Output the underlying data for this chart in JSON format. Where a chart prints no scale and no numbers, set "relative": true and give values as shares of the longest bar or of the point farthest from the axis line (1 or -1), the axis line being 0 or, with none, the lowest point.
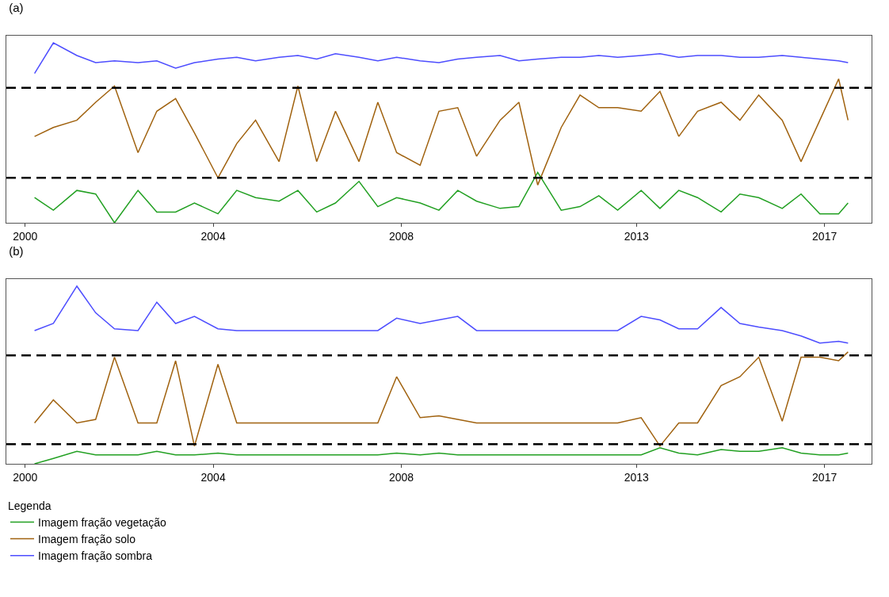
{
  "chart_data": [
    {
      "type": "line",
      "title": "(a)",
      "relative": true,
      "grid": false,
      "legend": false,
      "xlim": [
        1999.6,
        2018.0
      ],
      "xticks": [
        2000,
        2004,
        2008,
        2013,
        2017
      ],
      "x": [
        2000.2,
        2000.6,
        2001.1,
        2001.5,
        2001.9,
        2002.4,
        2002.8,
        2003.2,
        2003.6,
        2004.1,
        2004.5,
        2004.9,
        2005.4,
        2005.8,
        2006.2,
        2006.6,
        2007.1,
        2007.5,
        2007.9,
        2008.4,
        2008.8,
        2009.2,
        2009.6,
        2010.1,
        2010.5,
        2010.9,
        2011.4,
        2011.8,
        2012.2,
        2012.6,
        2013.1,
        2013.5,
        2013.9,
        2014.3,
        2014.8,
        2015.2,
        2015.6,
        2016.1,
        2016.5,
        2016.9,
        2017.3,
        2017.5
      ],
      "series": [
        {
          "color": "#4d4dff",
          "values": [
            0.83,
            1.0,
            0.93,
            0.89,
            0.9,
            0.89,
            0.9,
            0.86,
            0.89,
            0.91,
            0.92,
            0.9,
            0.92,
            0.93,
            0.91,
            0.94,
            0.92,
            0.9,
            0.92,
            0.9,
            0.89,
            0.91,
            0.92,
            0.93,
            0.9,
            0.91,
            0.92,
            0.92,
            0.93,
            0.92,
            0.93,
            0.94,
            0.92,
            0.93,
            0.93,
            0.92,
            0.92,
            0.93,
            0.92,
            0.91,
            0.9,
            0.89
          ]
        },
        {
          "color": "#a0620f",
          "values": [
            0.48,
            0.53,
            0.57,
            0.67,
            0.76,
            0.39,
            0.62,
            0.69,
            0.5,
            0.25,
            0.44,
            0.57,
            0.34,
            0.76,
            0.34,
            0.62,
            0.34,
            0.67,
            0.39,
            0.32,
            0.62,
            0.64,
            0.37,
            0.57,
            0.67,
            0.21,
            0.53,
            0.71,
            0.64,
            0.64,
            0.62,
            0.73,
            0.48,
            0.62,
            0.67,
            0.57,
            0.71,
            0.57,
            0.34,
            0.57,
            0.8,
            0.57
          ]
        },
        {
          "color": "#22a022",
          "values": [
            0.14,
            0.07,
            0.18,
            0.16,
            0.0,
            0.18,
            0.06,
            0.06,
            0.11,
            0.05,
            0.18,
            0.14,
            0.12,
            0.18,
            0.06,
            0.11,
            0.23,
            0.09,
            0.14,
            0.11,
            0.07,
            0.18,
            0.12,
            0.08,
            0.09,
            0.28,
            0.07,
            0.09,
            0.15,
            0.07,
            0.18,
            0.08,
            0.18,
            0.14,
            0.06,
            0.16,
            0.14,
            0.08,
            0.16,
            0.05,
            0.05,
            0.11
          ]
        }
      ],
      "ref_lines": [
        {
          "axis": "y",
          "value": 0.75,
          "color": "#000000",
          "line_style": "dashed"
        },
        {
          "axis": "y",
          "value": 0.25,
          "color": "#000000",
          "line_style": "dashed"
        }
      ]
    },
    {
      "type": "line",
      "title": "(b)",
      "relative": true,
      "grid": false,
      "legend": "bottom left",
      "legend_title": "Legenda",
      "xlim": [
        1999.6,
        2018.0
      ],
      "xticks": [
        2000,
        2004,
        2008,
        2013,
        2017
      ],
      "x": [
        2000.2,
        2000.6,
        2001.1,
        2001.5,
        2001.9,
        2002.4,
        2002.8,
        2003.2,
        2003.6,
        2004.1,
        2004.5,
        2004.9,
        2005.4,
        2005.8,
        2006.2,
        2006.6,
        2007.1,
        2007.5,
        2007.9,
        2008.4,
        2008.8,
        2009.2,
        2009.6,
        2010.1,
        2010.5,
        2010.9,
        2011.4,
        2011.8,
        2012.2,
        2012.6,
        2013.1,
        2013.5,
        2013.9,
        2014.3,
        2014.8,
        2015.2,
        2015.6,
        2016.1,
        2016.5,
        2016.9,
        2017.3,
        2017.5
      ],
      "series": [
        {
          "name": "Imagem fração vegetação",
          "color": "#22a022",
          "values": [
            0.0,
            0.03,
            0.07,
            0.05,
            0.05,
            0.05,
            0.07,
            0.05,
            0.05,
            0.06,
            0.05,
            0.05,
            0.05,
            0.05,
            0.05,
            0.05,
            0.05,
            0.05,
            0.06,
            0.05,
            0.06,
            0.05,
            0.05,
            0.05,
            0.05,
            0.05,
            0.05,
            0.05,
            0.05,
            0.05,
            0.05,
            0.09,
            0.06,
            0.05,
            0.08,
            0.07,
            0.07,
            0.09,
            0.06,
            0.05,
            0.05,
            0.06
          ]
        },
        {
          "name": "Imagem fração solo",
          "color": "#a0620f",
          "values": [
            0.23,
            0.36,
            0.23,
            0.25,
            0.6,
            0.23,
            0.23,
            0.58,
            0.1,
            0.56,
            0.23,
            0.23,
            0.23,
            0.23,
            0.23,
            0.23,
            0.23,
            0.23,
            0.49,
            0.26,
            0.27,
            0.25,
            0.23,
            0.23,
            0.23,
            0.23,
            0.23,
            0.23,
            0.23,
            0.23,
            0.26,
            0.1,
            0.23,
            0.23,
            0.44,
            0.49,
            0.6,
            0.24,
            0.6,
            0.6,
            0.58,
            0.63
          ]
        },
        {
          "name": "Imagem fração sombra",
          "color": "#4d4dff",
          "values": [
            0.75,
            0.79,
            1.0,
            0.85,
            0.76,
            0.75,
            0.91,
            0.79,
            0.83,
            0.76,
            0.75,
            0.75,
            0.75,
            0.75,
            0.75,
            0.75,
            0.75,
            0.75,
            0.82,
            0.79,
            0.81,
            0.83,
            0.75,
            0.75,
            0.75,
            0.75,
            0.75,
            0.75,
            0.75,
            0.75,
            0.83,
            0.81,
            0.76,
            0.76,
            0.88,
            0.79,
            0.77,
            0.75,
            0.72,
            0.68,
            0.69,
            0.68
          ]
        }
      ],
      "ref_lines": [
        {
          "axis": "y",
          "value": 0.61,
          "color": "#000000",
          "line_style": "dashed"
        },
        {
          "axis": "y",
          "value": 0.11,
          "color": "#000000",
          "line_style": "dashed"
        }
      ]
    }
  ]
}
